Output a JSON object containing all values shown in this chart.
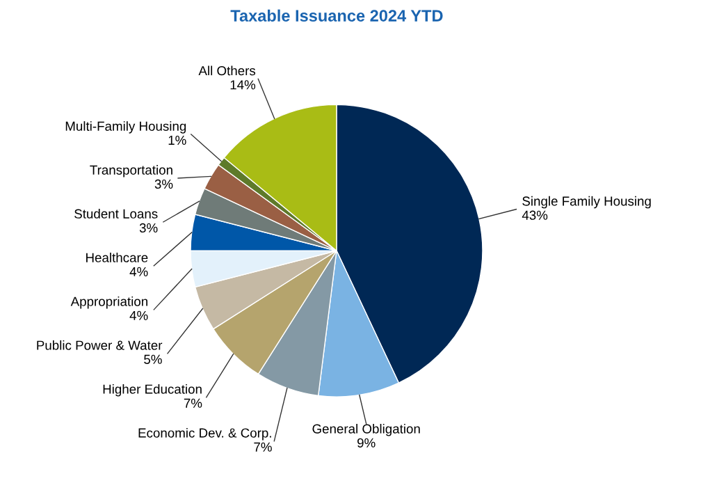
{
  "chart_data": {
    "type": "pie",
    "title": "Taxable Issuance 2024 YTD",
    "categories": [
      "Single Family Housing",
      "General Obligation",
      "Economic Dev. & Corp.",
      "Higher Education",
      "Public Power & Water",
      "Appropriation",
      "Healthcare",
      "Student Loans",
      "Transportation",
      "Multi-Family Housing",
      "All Others"
    ],
    "values": [
      43,
      9,
      7,
      7,
      5,
      4,
      4,
      3,
      3,
      1,
      14
    ],
    "value_labels": [
      "43%",
      "9%",
      "7%",
      "7%",
      "5%",
      "4%",
      "4%",
      "3%",
      "3%",
      "1%",
      "14%"
    ],
    "colors": [
      "#002855",
      "#7ab3e3",
      "#8499a5",
      "#b5a46d",
      "#c5b9a4",
      "#e3f1fb",
      "#0057a8",
      "#6f7b78",
      "#9a5f44",
      "#5e7a2a",
      "#a9bc15"
    ]
  }
}
